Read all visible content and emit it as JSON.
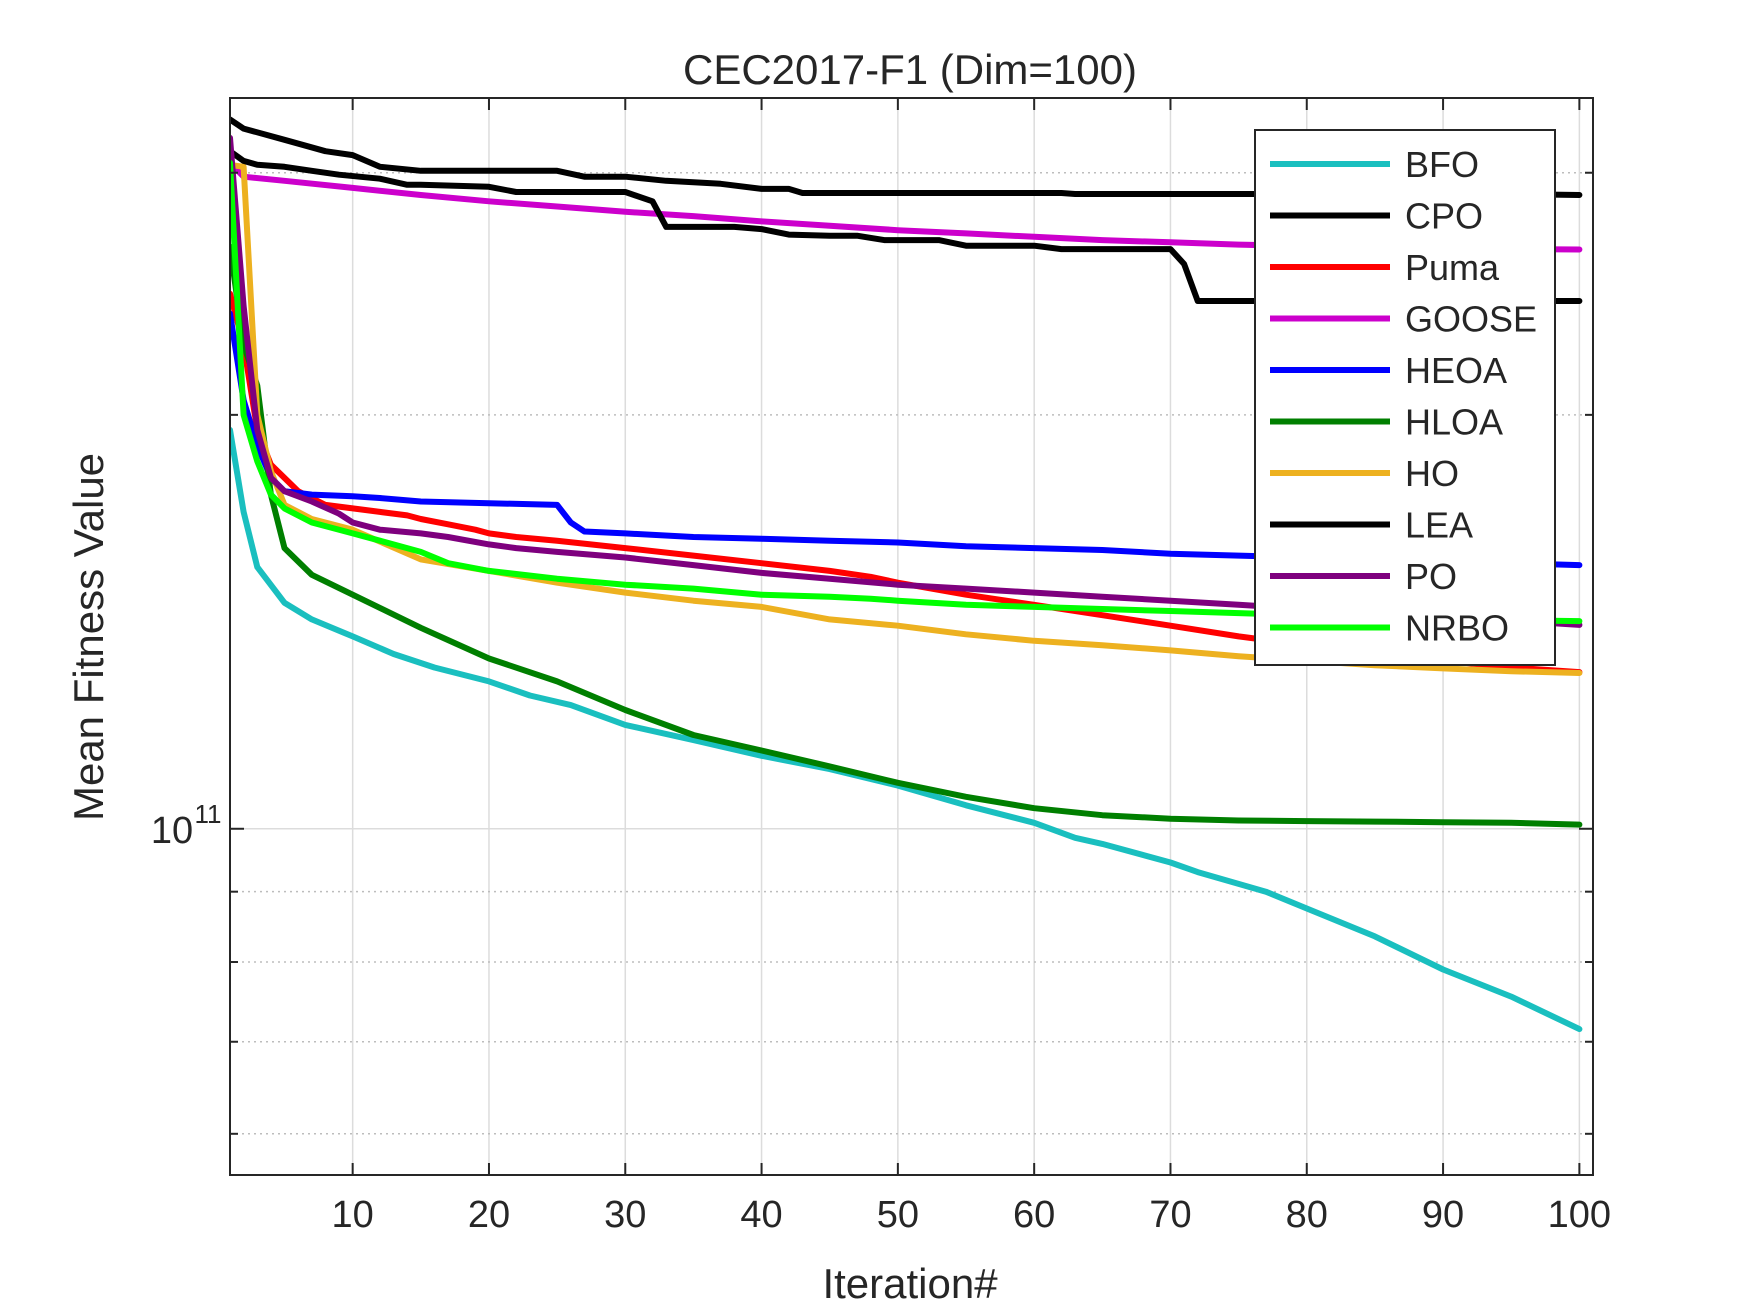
{
  "chart_data": {
    "type": "line",
    "title": "CEC2017-F1 (Dim=100)",
    "xlabel": "Iteration#",
    "ylabel": "Mean Fitness Value",
    "x_scale": "linear",
    "y_scale": "log",
    "xlim": [
      1,
      101
    ],
    "ylim": [
      56000000000,
      340000000000
    ],
    "x_ticks": [
      10,
      20,
      30,
      40,
      50,
      60,
      70,
      80,
      90,
      100
    ],
    "x_tick_labels": [
      "10",
      "20",
      "30",
      "40",
      "50",
      "60",
      "70",
      "80",
      "90",
      "100"
    ],
    "y_tick_label": {
      "value": 100000000000,
      "base": "10",
      "exponent": "11"
    },
    "y_minor_ticks": [
      60000000000,
      70000000000,
      80000000000,
      90000000000,
      200000000000,
      300000000000
    ],
    "grid": true,
    "legend_position": "top-right",
    "series": [
      {
        "name": "BFO",
        "color": "#1ABFBF",
        "x": [
          1,
          2,
          3,
          5,
          7,
          10,
          13,
          16,
          20,
          23,
          26,
          30,
          35,
          40,
          45,
          50,
          55,
          60,
          63,
          65,
          70,
          72,
          77,
          80,
          85,
          90,
          95,
          100
        ],
        "y": [
          195000000000.0,
          170000000000.0,
          155000000000.0,
          146000000000.0,
          142000000000.0,
          138000000000.0,
          134000000000.0,
          131000000000.0,
          128000000000.0,
          125000000000.0,
          123000000000.0,
          119000000000.0,
          116000000000.0,
          113000000000.0,
          110500000000.0,
          107500000000.0,
          104000000000.0,
          101000000000.0,
          98500000000.0,
          97500000000.0,
          94500000000.0,
          93000000000.0,
          90000000000.0,
          87500000000.0,
          83500000000.0,
          79000000000.0,
          75500000000.0,
          71500000000.0
        ]
      },
      {
        "name": "CPO",
        "color": "#000000",
        "x": [
          1,
          2,
          5,
          8,
          10,
          12,
          15,
          20,
          25,
          27,
          30,
          33,
          37,
          40,
          42,
          43,
          45,
          55,
          62,
          63,
          70,
          75,
          80,
          85,
          90,
          95,
          100
        ],
        "y": [
          328000000000.0,
          323000000000.0,
          317000000000.0,
          311000000000.0,
          309000000000.0,
          303000000000.0,
          301000000000.0,
          301000000000.0,
          301000000000.0,
          298000000000.0,
          298000000000.0,
          296000000000.0,
          294500000000.0,
          292000000000.0,
          292000000000.0,
          290000000000.0,
          290000000000.0,
          290000000000.0,
          290000000000.0,
          289500000000.0,
          289500000000.0,
          289500000000.0,
          289500000000.0,
          289500000000.0,
          289500000000.0,
          289500000000.0,
          289000000000.0
        ]
      },
      {
        "name": "Puma",
        "color": "#FF0000",
        "x": [
          1,
          2,
          3,
          4,
          6,
          8,
          10,
          12,
          14,
          15,
          17,
          19,
          20,
          22,
          25,
          30,
          35,
          40,
          45,
          48,
          50,
          55,
          60,
          65,
          70,
          75,
          80,
          85,
          90,
          95,
          100
        ],
        "y": [
          245000000000.0,
          225000000000.0,
          195000000000.0,
          184000000000.0,
          176000000000.0,
          172000000000.0,
          171000000000.0,
          170000000000.0,
          169000000000.0,
          168000000000.0,
          166500000000.0,
          165000000000.0,
          164000000000.0,
          163000000000.0,
          162000000000.0,
          160000000000.0,
          158000000000.0,
          156000000000.0,
          154000000000.0,
          152500000000.0,
          151000000000.0,
          148000000000.0,
          145500000000.0,
          143000000000.0,
          140500000000.0,
          138000000000.0,
          136000000000.0,
          134000000000.0,
          132500000000.0,
          131000000000.0,
          130000000000.0
        ]
      },
      {
        "name": "GOOSE",
        "color": "#CC00CC",
        "x": [
          1,
          2,
          5,
          10,
          15,
          20,
          25,
          30,
          35,
          40,
          45,
          50,
          55,
          60,
          65,
          70,
          75,
          80,
          85,
          90,
          95,
          100
        ],
        "y": [
          305000000000.0,
          298000000000.0,
          296000000000.0,
          292500000000.0,
          289000000000.0,
          286000000000.0,
          283500000000.0,
          281000000000.0,
          279000000000.0,
          276500000000.0,
          274500000000.0,
          272500000000.0,
          271000000000.0,
          269500000000.0,
          268000000000.0,
          267000000000.0,
          266000000000.0,
          265300000000.0,
          264800000000.0,
          264400000000.0,
          264000000000.0,
          263800000000.0
        ]
      },
      {
        "name": "HEOA",
        "color": "#0000FF",
        "x": [
          1,
          2,
          3,
          4,
          5,
          7,
          10,
          12,
          15,
          20,
          25,
          26,
          27,
          30,
          35,
          40,
          45,
          50,
          55,
          60,
          65,
          70,
          75,
          80,
          85,
          90,
          95,
          100
        ],
        "y": [
          237000000000.0,
          205000000000.0,
          190000000000.0,
          180000000000.0,
          176000000000.0,
          175000000000.0,
          174500000000.0,
          174000000000.0,
          173000000000.0,
          172500000000.0,
          172000000000.0,
          167000000000.0,
          164500000000.0,
          164000000000.0,
          163000000000.0,
          162500000000.0,
          162000000000.0,
          161500000000.0,
          160500000000.0,
          160000000000.0,
          159500000000.0,
          158500000000.0,
          158000000000.0,
          157500000000.0,
          157000000000.0,
          156500000000.0,
          156000000000.0,
          155500000000.0
        ]
      },
      {
        "name": "HLOA",
        "color": "#007F00",
        "x": [
          1,
          2,
          3,
          4,
          5,
          7,
          10,
          15,
          20,
          25,
          30,
          35,
          40,
          45,
          50,
          55,
          60,
          65,
          70,
          75,
          80,
          85,
          90,
          95,
          100
        ],
        "y": [
          265000000000.0,
          225000000000.0,
          210000000000.0,
          175000000000.0,
          160000000000.0,
          153000000000.0,
          148000000000.0,
          140000000000.0,
          133000000000.0,
          128000000000.0,
          122000000000.0,
          117000000000.0,
          114000000000.0,
          111000000000.0,
          108000000000.0,
          105500000000.0,
          103500000000.0,
          102300000000.0,
          101700000000.0,
          101400000000.0,
          101300000000.0,
          101200000000.0,
          101100000000.0,
          101000000000.0,
          100700000000.0
        ]
      },
      {
        "name": "HO",
        "color": "#EDB120",
        "x": [
          1,
          2,
          3,
          4,
          5,
          7,
          10,
          15,
          20,
          25,
          30,
          35,
          40,
          45,
          50,
          55,
          60,
          65,
          70,
          75,
          80,
          85,
          90,
          95,
          100
        ],
        "y": [
          304000000000.0,
          303000000000.0,
          200000000000.0,
          182000000000.0,
          172000000000.0,
          168000000000.0,
          165000000000.0,
          157000000000.0,
          154000000000.0,
          151000000000.0,
          148500000000.0,
          146500000000.0,
          145000000000.0,
          142000000000.0,
          140500000000.0,
          138500000000.0,
          137000000000.0,
          136000000000.0,
          134800000000.0,
          133500000000.0,
          132500000000.0,
          131500000000.0,
          130800000000.0,
          130200000000.0,
          129800000000.0
        ]
      },
      {
        "name": "LEA",
        "color": "#000000",
        "x": [
          1,
          2,
          3,
          5,
          7,
          9,
          12,
          14,
          15,
          20,
          22,
          25,
          30,
          32,
          33,
          35,
          38,
          40,
          42,
          45,
          47,
          49,
          50,
          53,
          55,
          60,
          62,
          68,
          70,
          71,
          72,
          75,
          80,
          85,
          90,
          95,
          100
        ],
        "y": [
          311000000000.0,
          306000000000.0,
          304000000000.0,
          303000000000.0,
          301000000000.0,
          299000000000.0,
          297000000000.0,
          294000000000.0,
          294000000000.0,
          293000000000.0,
          290500000000.0,
          290500000000.0,
          290500000000.0,
          286000000000.0,
          274000000000.0,
          274000000000.0,
          274000000000.0,
          273000000000.0,
          270500000000.0,
          270000000000.0,
          270000000000.0,
          268000000000.0,
          268000000000.0,
          268000000000.0,
          265500000000.0,
          265500000000.0,
          264000000000.0,
          264000000000.0,
          264000000000.0,
          257500000000.0,
          242000000000.0,
          242000000000.0,
          242000000000.0,
          242000000000.0,
          242000000000.0,
          242000000000.0,
          242000000000.0
        ]
      },
      {
        "name": "PO",
        "color": "#7E007E",
        "x": [
          1,
          2,
          3,
          4,
          5,
          7,
          9,
          10,
          12,
          15,
          17,
          20,
          22,
          25,
          30,
          35,
          40,
          45,
          50,
          55,
          60,
          65,
          70,
          75,
          80,
          85,
          90,
          95,
          100
        ],
        "y": [
          318000000000.0,
          240000000000.0,
          195000000000.0,
          180000000000.0,
          176000000000.0,
          173000000000.0,
          169500000000.0,
          167000000000.0,
          165000000000.0,
          164000000000.0,
          163000000000.0,
          161000000000.0,
          160000000000.0,
          159000000000.0,
          157500000000.0,
          155500000000.0,
          153500000000.0,
          152000000000.0,
          150500000000.0,
          149500000000.0,
          148500000000.0,
          147500000000.0,
          146500000000.0,
          145500000000.0,
          144500000000.0,
          143500000000.0,
          142500000000.0,
          141700000000.0,
          140700000000.0
        ]
      },
      {
        "name": "NRBO",
        "color": "#00FF00",
        "x": [
          1,
          2,
          3,
          4,
          5,
          7,
          10,
          12,
          15,
          17,
          20,
          25,
          30,
          35,
          40,
          45,
          48,
          50,
          55,
          60,
          65,
          70,
          75,
          80,
          85,
          90,
          95,
          100
        ],
        "y": [
          305000000000.0,
          200000000000.0,
          185000000000.0,
          175000000000.0,
          171000000000.0,
          167000000000.0,
          164000000000.0,
          162000000000.0,
          159000000000.0,
          156000000000.0,
          154000000000.0,
          152000000000.0,
          150500000000.0,
          149500000000.0,
          148000000000.0,
          147500000000.0,
          147000000000.0,
          146500000000.0,
          145500000000.0,
          145000000000.0,
          144500000000.0,
          144000000000.0,
          143500000000.0,
          143000000000.0,
          142500000000.0,
          142000000000.0,
          141800000000.0,
          141600000000.0
        ]
      }
    ]
  }
}
